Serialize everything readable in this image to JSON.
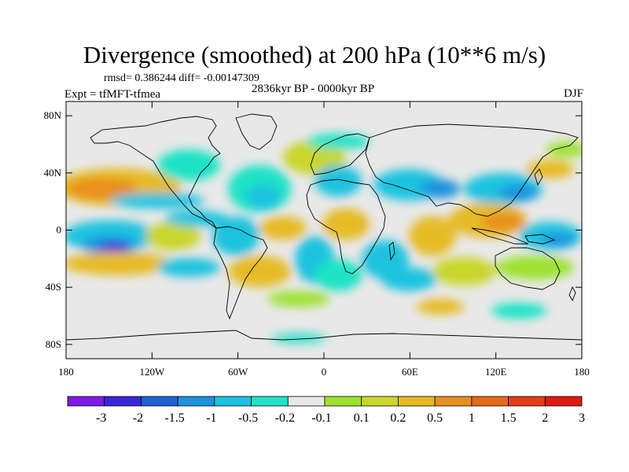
{
  "title": "Divergence (smoothed) at 200 hPa (10**6 m/s)",
  "stats_text": "rmsd= 0.386244 diff= -0.00147309",
  "experiment": "Expt = tfMFT-tfmea",
  "period": "2836kyr BP - 0000kyr BP",
  "season": "DJF",
  "axes": {
    "lat_labels": [
      "80N",
      "40N",
      "0",
      "40S",
      "80S"
    ],
    "lon_labels": [
      "180",
      "120W",
      "60W",
      "0",
      "60E",
      "120E",
      "180"
    ]
  },
  "colorbar": {
    "labels": [
      "-3",
      "-2",
      "-1.5",
      "-1",
      "-0.5",
      "-0.2",
      "-0.1",
      "0.1",
      "0.2",
      "0.5",
      "1",
      "1.5",
      "2",
      "3"
    ],
    "colors": [
      "#7f1be6",
      "#3a26d8",
      "#1e60d6",
      "#1b92de",
      "#1cc3df",
      "#1fe3c6",
      "#e8e8e8",
      "#9ce230",
      "#c9d62c",
      "#e6bb25",
      "#e8901f",
      "#e66a1a",
      "#e33d15",
      "#e01a10"
    ]
  },
  "map_colors": {
    "ocean": "#e8e8e8",
    "coast": "#000000"
  }
}
